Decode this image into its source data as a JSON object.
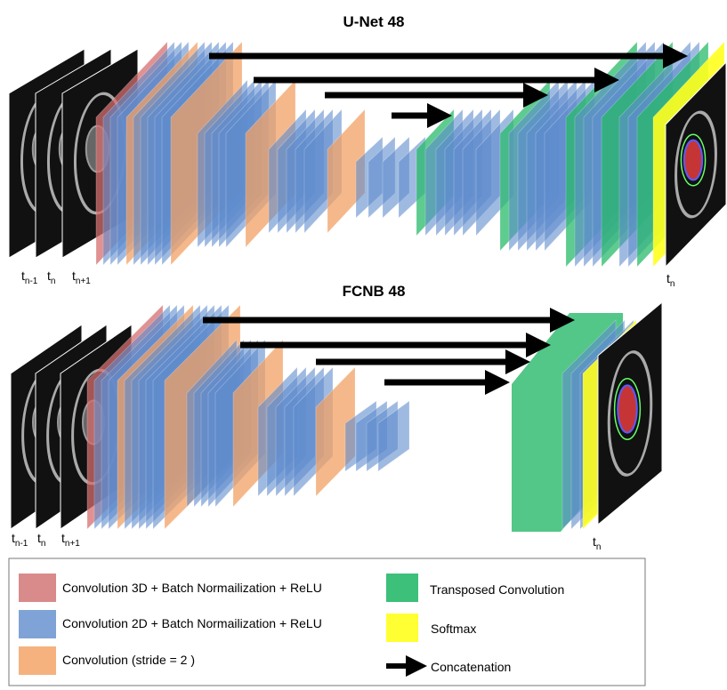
{
  "unet": {
    "title": "U-Net 48",
    "time_labels": [
      {
        "base": "t",
        "sub": "n-1"
      },
      {
        "base": "t",
        "sub": "n"
      },
      {
        "base": "t",
        "sub": "n+1"
      }
    ],
    "output_label": {
      "base": "t",
      "sub": "n"
    }
  },
  "fcnb": {
    "title": "FCNB 48",
    "time_labels": [
      {
        "base": "t",
        "sub": "n-1"
      },
      {
        "base": "t",
        "sub": "n"
      },
      {
        "base": "t",
        "sub": "n+1"
      }
    ],
    "output_label": {
      "base": "t",
      "sub": "n"
    }
  },
  "legend": {
    "items": [
      "Convolution 3D + Batch Normailization + ReLU",
      "Convolution 2D + Batch Normailization + ReLU",
      "Convolution (stride = 2 )",
      "Transposed Convolution",
      "Softmax",
      "Concatenation"
    ]
  }
}
